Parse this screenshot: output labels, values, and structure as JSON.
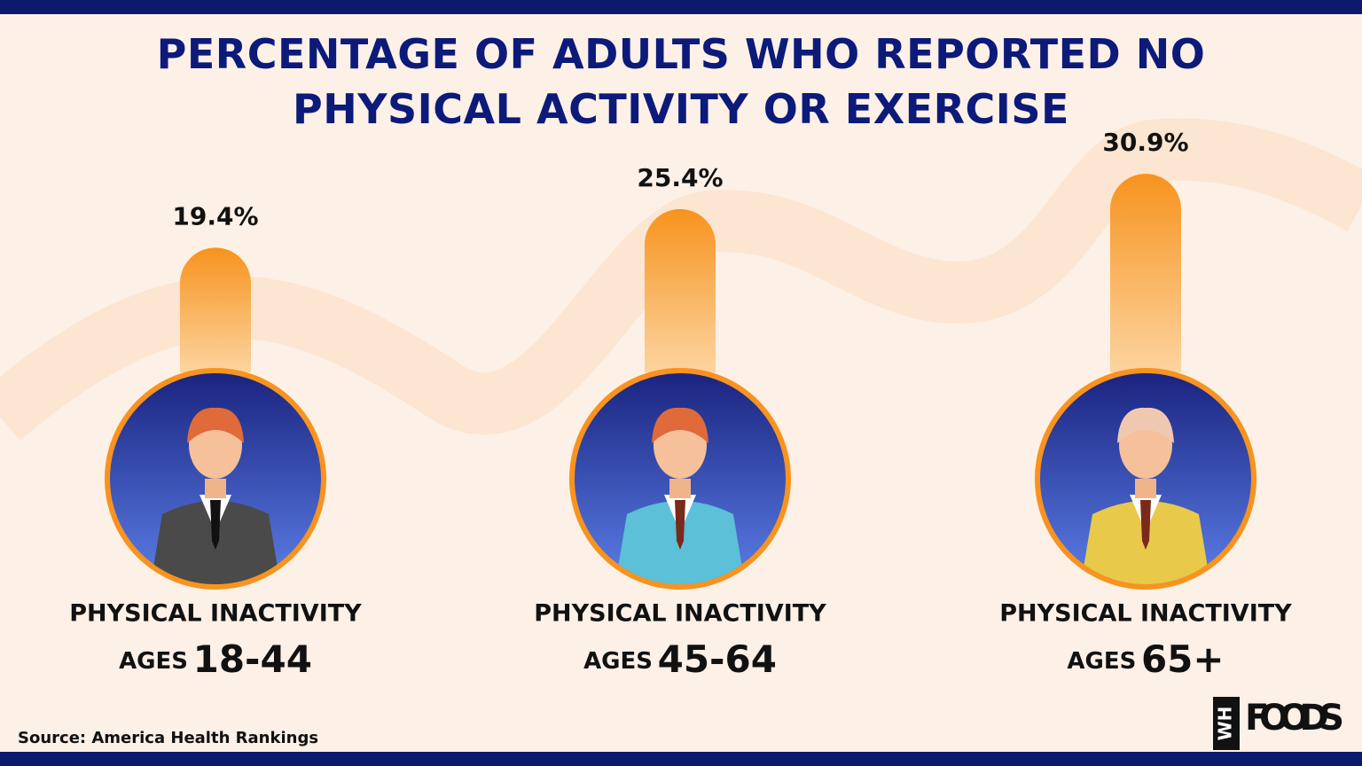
{
  "chart_data": {
    "type": "bar",
    "title": "PERCENTAGE OF ADULTS WHO REPORTED NO PHYSICAL ACTIVITY OR EXERCISE",
    "category_heading": "PHYSICAL INACTIVITY",
    "category_prefix": "AGES",
    "categories": [
      "18-44",
      "45-64",
      "65+"
    ],
    "values": [
      19.4,
      25.4,
      30.9
    ],
    "value_labels": [
      "19.4%",
      "25.4%",
      "30.9%"
    ],
    "color": "#f7931e",
    "source": "Source: America Health Rankings"
  },
  "logo": {
    "mark": "WH",
    "text": "FOODS"
  }
}
